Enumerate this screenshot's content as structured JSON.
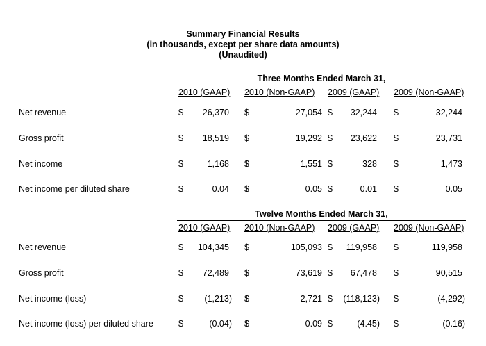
{
  "title": {
    "line1": "Summary Financial Results",
    "line2": "(in thousands, except per share data amounts)",
    "line3": "(Unaudited)"
  },
  "currency_symbol": "$",
  "sections": [
    {
      "heading": "Three Months Ended March 31,",
      "columns": [
        "2010 (GAAP)",
        "2010 (Non-GAAP)",
        "2009 (GAAP)",
        "2009 (Non-GAAP)"
      ],
      "rows": [
        {
          "label": "Net revenue",
          "values": [
            "26,370",
            "27,054",
            "32,244",
            "32,244"
          ]
        },
        {
          "label": "Gross profit",
          "values": [
            "18,519",
            "19,292",
            "23,622",
            "23,731"
          ]
        },
        {
          "label": "Net income",
          "values": [
            "1,168",
            "1,551",
            "328",
            "1,473"
          ]
        },
        {
          "label": "Net income per diluted share",
          "values": [
            "0.04",
            "0.05",
            "0.01",
            "0.05"
          ]
        }
      ]
    },
    {
      "heading": "Twelve Months Ended March 31,",
      "columns": [
        "2010 (GAAP)",
        "2010 (Non-GAAP)",
        "2009 (GAAP)",
        "2009 (Non-GAAP)"
      ],
      "rows": [
        {
          "label": "Net revenue",
          "values": [
            "104,345",
            "105,093",
            "119,958",
            "119,958"
          ]
        },
        {
          "label": "Gross profit",
          "values": [
            "72,489",
            "73,619",
            "67,478",
            "90,515"
          ]
        },
        {
          "label": "Net income (loss)",
          "values": [
            "(1,213)",
            "2,721",
            "(118,123)",
            "(4,292)"
          ]
        },
        {
          "label": "Net income (loss) per diluted share",
          "values": [
            "(0.04)",
            "0.09",
            "(4.45)",
            "(0.16)"
          ]
        }
      ]
    }
  ]
}
